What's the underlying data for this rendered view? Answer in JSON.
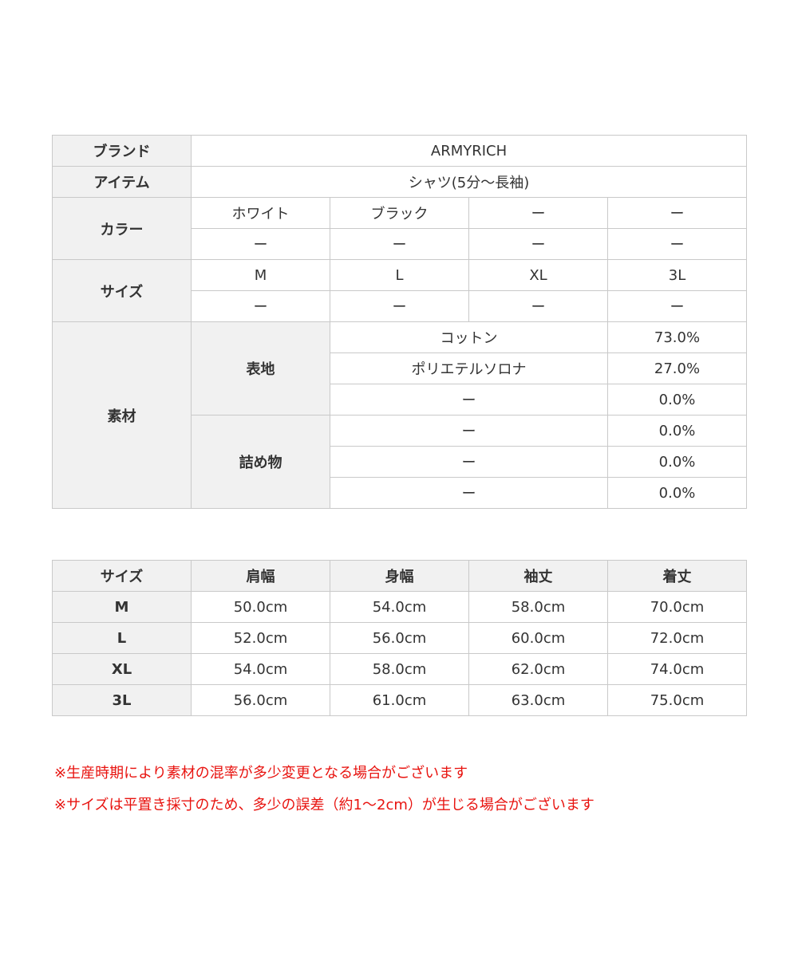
{
  "spec": {
    "brand_label": "ブランド",
    "brand": "ARMYRICH",
    "item_label": "アイテム",
    "item": "シャツ(5分～長袖)",
    "color_label": "カラー",
    "colors": [
      "ホワイト",
      "ブラック",
      "ー",
      "ー",
      "ー",
      "ー",
      "ー",
      "ー"
    ],
    "size_label": "サイズ",
    "sizes": [
      "M",
      "L",
      "XL",
      "3L",
      "ー",
      "ー",
      "ー",
      "ー"
    ],
    "material_label": "素材",
    "outer_label": "表地",
    "outer": [
      {
        "name": "コットン",
        "pct": "73.0%"
      },
      {
        "name": "ポリエテルソロナ",
        "pct": "27.0%"
      },
      {
        "name": "ー",
        "pct": "0.0%"
      }
    ],
    "filling_label": "詰め物",
    "filling": [
      {
        "name": "ー",
        "pct": "0.0%"
      },
      {
        "name": "ー",
        "pct": "0.0%"
      },
      {
        "name": "ー",
        "pct": "0.0%"
      }
    ]
  },
  "sizes_table": {
    "headers": [
      "サイズ",
      "肩幅",
      "身幅",
      "袖丈",
      "着丈"
    ],
    "rows": [
      [
        "M",
        "50.0cm",
        "54.0cm",
        "58.0cm",
        "70.0cm"
      ],
      [
        "L",
        "52.0cm",
        "56.0cm",
        "60.0cm",
        "72.0cm"
      ],
      [
        "XL",
        "54.0cm",
        "58.0cm",
        "62.0cm",
        "74.0cm"
      ],
      [
        "3L",
        "56.0cm",
        "61.0cm",
        "63.0cm",
        "75.0cm"
      ]
    ]
  },
  "notes": [
    "※生産時期により素材の混率が多少変更となる場合がございます",
    "※サイズは平置き採寸のため、多少の誤差（約1～2cm）が生じる場合がございます"
  ]
}
